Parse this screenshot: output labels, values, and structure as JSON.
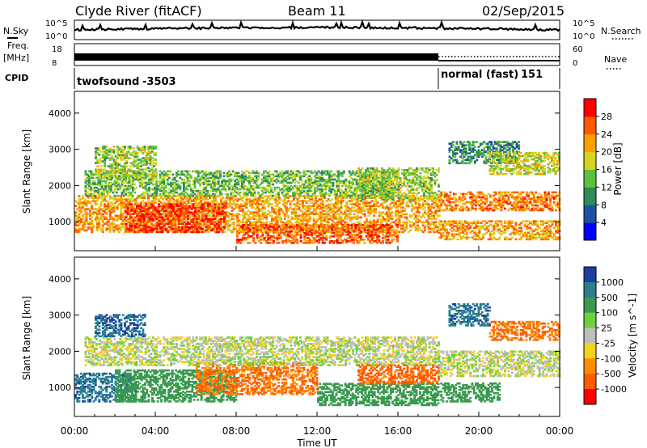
{
  "header": {
    "station": "Clyde River (fitACF)",
    "beam": "Beam 11",
    "date": "02/Sep/2015"
  },
  "status_panels": {
    "nsky_label": "N.Sky",
    "nsky_ticks": [
      "10^5",
      "10^0"
    ],
    "nsearch_label": "N.Search",
    "nsearch_ticks": [
      "10^5",
      "10^0"
    ],
    "freq_label": "Freq.",
    "freq_unit": "[MHz]",
    "freq_ticks": [
      "18",
      "8"
    ],
    "nave_label": "Nave",
    "nave_ticks": [
      "60",
      "0"
    ],
    "cpid_label": "CPID",
    "cpid_segments": [
      {
        "name": "twofsound",
        "id": "-3503",
        "start_hour": 0,
        "end_hour": 18
      },
      {
        "name": "normal (fast)",
        "id": "151",
        "start_hour": 18,
        "end_hour": 24
      }
    ]
  },
  "x_axis": {
    "label": "Time UT",
    "ticks": [
      "00:00",
      "04:00",
      "08:00",
      "12:00",
      "16:00",
      "20:00",
      "00:00"
    ],
    "tick_hours": [
      0,
      4,
      8,
      12,
      16,
      20,
      24
    ],
    "range_hours": [
      0,
      24
    ]
  },
  "colors": {
    "power": [
      "#0000ff",
      "#1f4fa0",
      "#2e8b57",
      "#5fbf3f",
      "#d4d422",
      "#ff9f00",
      "#ff5a00",
      "#ff0000"
    ],
    "velocity": [
      "#1c3f9f",
      "#2a7f8f",
      "#3a9a4f",
      "#6fd03f",
      "#bdbdbd",
      "#f2d21a",
      "#ff8c00",
      "#ff5a00",
      "#ff0000"
    ],
    "ground_scatter": "#bdbdbd"
  },
  "chart_data": [
    {
      "type": "heatmap",
      "title": "",
      "xlabel": "",
      "ylabel": "Slant Range [km]",
      "yticks": [
        "1000",
        "2000",
        "3000",
        "4000"
      ],
      "ylim": [
        200,
        4600
      ],
      "colorbar_label": "Power [dB]",
      "colorbar_ticks": [
        "4",
        "8",
        "12",
        "16",
        "20",
        "24",
        "28"
      ],
      "colorbar_range": [
        0,
        32
      ],
      "regions": [
        {
          "t0": 0.0,
          "t1": 18.0,
          "r0": 700,
          "r1": 1700,
          "value": 22
        },
        {
          "t0": 2.5,
          "t1": 7.5,
          "r0": 700,
          "r1": 1500,
          "value": 28
        },
        {
          "t0": 0.5,
          "t1": 16.0,
          "r0": 1700,
          "r1": 2400,
          "value": 14
        },
        {
          "t0": 1.0,
          "t1": 4.0,
          "r0": 2200,
          "r1": 3100,
          "value": 16
        },
        {
          "t0": 8.0,
          "t1": 16.0,
          "r0": 400,
          "r1": 900,
          "value": 26
        },
        {
          "t0": 14.0,
          "t1": 18.0,
          "r0": 1600,
          "r1": 2500,
          "value": 16
        },
        {
          "t0": 18.0,
          "t1": 24.0,
          "r0": 1300,
          "r1": 1800,
          "value": 24
        },
        {
          "t0": 18.0,
          "t1": 24.0,
          "r0": 500,
          "r1": 1000,
          "value": 22
        },
        {
          "t0": 18.5,
          "t1": 22.0,
          "r0": 2600,
          "r1": 3200,
          "value": 10
        },
        {
          "t0": 20.5,
          "t1": 24.0,
          "r0": 2300,
          "r1": 2900,
          "value": 18
        }
      ]
    },
    {
      "type": "heatmap",
      "title": "",
      "xlabel": "Time UT",
      "ylabel": "Slant Range [km]",
      "yticks": [
        "1000",
        "2000",
        "3000",
        "4000"
      ],
      "ylim": [
        200,
        4600
      ],
      "colorbar_label": "Velocity [m s^-1]",
      "colorbar_ticks": [
        "1000",
        "500",
        "100",
        "25",
        "-25",
        "-100",
        "-500",
        "-1000"
      ],
      "colorbar_range": [
        -1000,
        1000
      ],
      "regions": [
        {
          "t0": 0.0,
          "t1": 3.0,
          "r0": 600,
          "r1": 1400,
          "value": 600
        },
        {
          "t0": 2.0,
          "t1": 8.0,
          "r0": 600,
          "r1": 1500,
          "value": 200
        },
        {
          "t0": 6.0,
          "t1": 12.0,
          "r0": 800,
          "r1": 1700,
          "value": -300
        },
        {
          "t0": 0.5,
          "t1": 18.0,
          "r0": 1600,
          "r1": 2400,
          "value": 0
        },
        {
          "t0": 1.0,
          "t1": 3.5,
          "r0": 2400,
          "r1": 3000,
          "value": 700
        },
        {
          "t0": 12.0,
          "t1": 18.0,
          "r0": 500,
          "r1": 1100,
          "value": 150
        },
        {
          "t0": 14.0,
          "t1": 18.0,
          "r0": 1100,
          "r1": 1600,
          "value": -400
        },
        {
          "t0": 18.0,
          "t1": 24.0,
          "r0": 1300,
          "r1": 2000,
          "value": 0
        },
        {
          "t0": 18.0,
          "t1": 21.0,
          "r0": 600,
          "r1": 1100,
          "value": 120
        },
        {
          "t0": 18.5,
          "t1": 20.5,
          "r0": 2700,
          "r1": 3300,
          "value": 600
        },
        {
          "t0": 20.5,
          "t1": 24.0,
          "r0": 2300,
          "r1": 2800,
          "value": -300
        }
      ]
    }
  ]
}
